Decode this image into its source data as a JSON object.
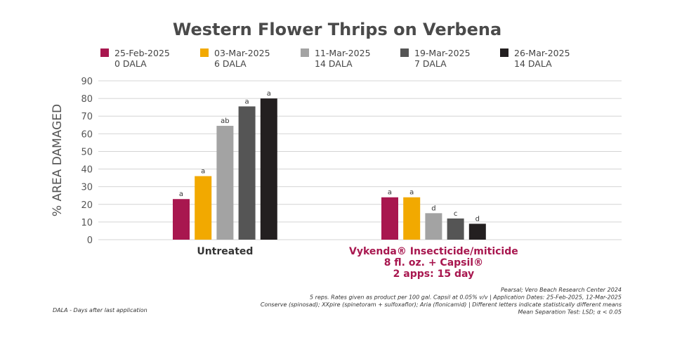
{
  "chart_data": {
    "type": "bar",
    "title": "Western Flower Thrips on Verbena",
    "ylabel": "% AREA DAMAGED",
    "xlabel": "",
    "ylim": [
      0,
      90
    ],
    "yticks": [
      0,
      10,
      20,
      30,
      40,
      50,
      60,
      70,
      80,
      90
    ],
    "grid": true,
    "legend_placement": "top",
    "categories": [
      {
        "lines": [
          "Untreated"
        ],
        "color": "#333333"
      },
      {
        "lines": [
          "Vykenda® Insecticide/miticide",
          "8 fl. oz. + Capsil®",
          "2 apps: 15 day"
        ],
        "color": "#a8174f"
      }
    ],
    "series": [
      {
        "name": "25-Feb-2025",
        "sub": "0 DALA",
        "color": "#a8174f",
        "values": [
          23,
          24
        ],
        "letters": [
          "a",
          "a"
        ]
      },
      {
        "name": "03-Mar-2025",
        "sub": "6 DALA",
        "color": "#f2a900",
        "values": [
          36,
          24
        ],
        "letters": [
          "a",
          "a"
        ]
      },
      {
        "name": "11-Mar-2025",
        "sub": "14 DALA",
        "color": "#a3a3a3",
        "values": [
          64.5,
          15
        ],
        "letters": [
          "ab",
          "d"
        ]
      },
      {
        "name": "19-Mar-2025",
        "sub": "7 DALA",
        "color": "#555555",
        "values": [
          75.5,
          12
        ],
        "letters": [
          "a",
          "c"
        ]
      },
      {
        "name": "26-Mar-2025",
        "sub": "14 DALA",
        "color": "#231f20",
        "values": [
          80,
          9
        ],
        "letters": [
          "a",
          "d"
        ]
      }
    ],
    "footnotes": [
      "Pearsal; Vero Beach Research Center 2024",
      "5 reps. Rates given as product per 100 gal. Capsil at 0.05% v/v   |   Application Dates:  25-Feb-2025, 12-Mar-2025",
      "Conserve (spinosad); XXpire (spinetoram + sulfoxaflor); Aria (flonicamid)   |   Different letters indicate statistically different means",
      "Mean Separation Test: LSD; α  < 0.05"
    ],
    "dala_note": "DALA - Days after last application"
  }
}
